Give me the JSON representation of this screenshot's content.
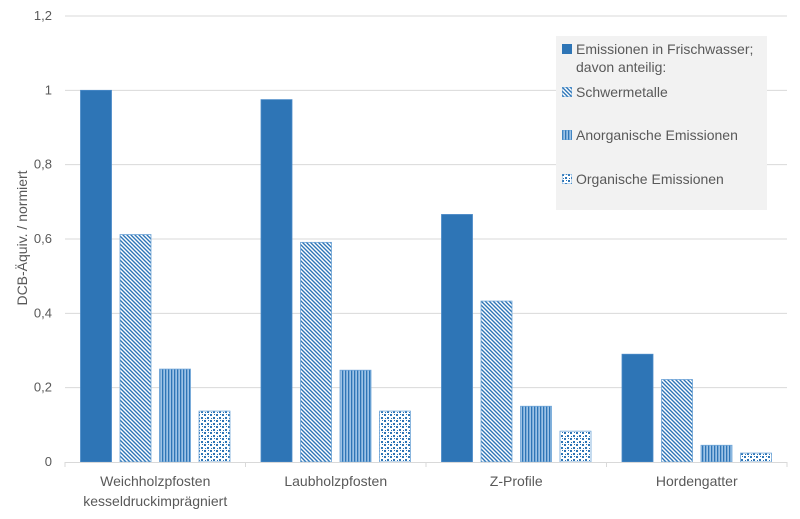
{
  "colors": {
    "primary": "#2e75b6",
    "light": "#9dc3e6",
    "grid": "#d9d9d9",
    "legend_bg": "#f2f2f2",
    "text": "#595959"
  },
  "chart_data": {
    "type": "bar",
    "title": "",
    "xlabel": "",
    "ylabel": "DCB-Äquiv. / normiert",
    "ylim": [
      0,
      1.2
    ],
    "yticks": [
      0,
      0.2,
      0.4,
      0.6,
      0.8,
      1,
      1.2
    ],
    "ytick_labels": [
      "0",
      "0,2",
      "0,4",
      "0,6",
      "0,8",
      "1",
      "1,2"
    ],
    "grid": true,
    "legend_position": "top-right",
    "categories": [
      [
        "Weichholzpfosten",
        "kesseldruckimprägniert"
      ],
      [
        "Laubholzpfosten"
      ],
      [
        "Z-Profile"
      ],
      [
        "Hordengatter"
      ]
    ],
    "series": [
      {
        "name": "Emissionen in Frischwasser;\ndavon anteilig:",
        "pattern": "solid",
        "values": [
          1.0,
          0.975,
          0.666,
          0.29
        ]
      },
      {
        "name": "Schwermetalle",
        "pattern": "diagonal",
        "values": [
          0.612,
          0.591,
          0.433,
          0.222
        ]
      },
      {
        "name": "Anorganische Emissionen",
        "pattern": "vertical",
        "values": [
          0.25,
          0.247,
          0.15,
          0.045
        ]
      },
      {
        "name": "Organische Emissionen",
        "pattern": "dotted",
        "values": [
          0.137,
          0.137,
          0.083,
          0.024
        ]
      }
    ]
  }
}
